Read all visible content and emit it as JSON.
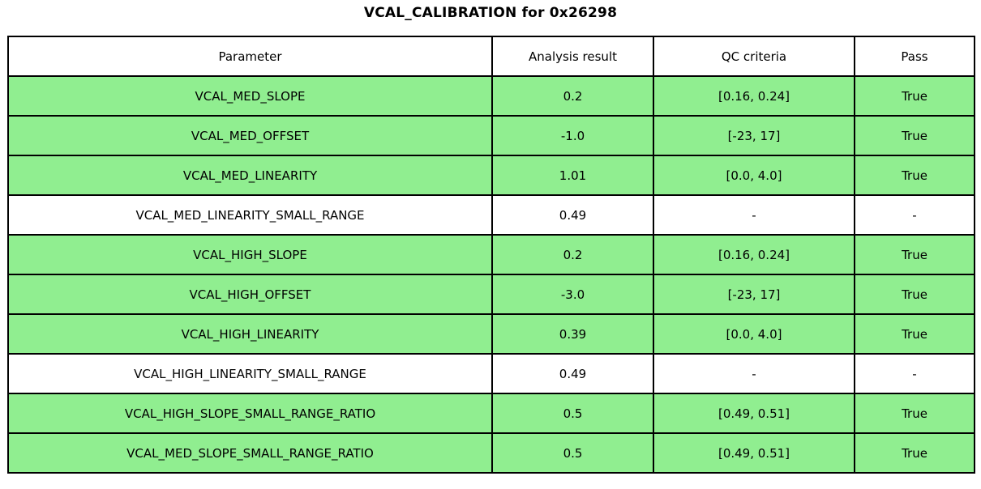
{
  "title": "VCAL_CALIBRATION for 0x26298",
  "colors": {
    "pass_row": "#90EE90",
    "neutral_row": "#FFFFFF",
    "header_row": "#FFFFFF",
    "border": "#000000",
    "text": "#000000"
  },
  "chart_data": {
    "type": "table",
    "title": "VCAL_CALIBRATION for 0x26298",
    "columns": [
      "Parameter",
      "Analysis result",
      "QC criteria",
      "Pass"
    ],
    "rows": [
      [
        "VCAL_MED_SLOPE",
        "0.2",
        "[0.16, 0.24]",
        "True"
      ],
      [
        "VCAL_MED_OFFSET",
        "-1.0",
        "[-23, 17]",
        "True"
      ],
      [
        "VCAL_MED_LINEARITY",
        "1.01",
        "[0.0, 4.0]",
        "True"
      ],
      [
        "VCAL_MED_LINEARITY_SMALL_RANGE",
        "0.49",
        "-",
        "-"
      ],
      [
        "VCAL_HIGH_SLOPE",
        "0.2",
        "[0.16, 0.24]",
        "True"
      ],
      [
        "VCAL_HIGH_OFFSET",
        "-3.0",
        "[-23, 17]",
        "True"
      ],
      [
        "VCAL_HIGH_LINEARITY",
        "0.39",
        "[0.0, 4.0]",
        "True"
      ],
      [
        "VCAL_HIGH_LINEARITY_SMALL_RANGE",
        "0.49",
        "-",
        "-"
      ],
      [
        "VCAL_HIGH_SLOPE_SMALL_RANGE_RATIO",
        "0.5",
        "[0.49, 0.51]",
        "True"
      ],
      [
        "VCAL_MED_SLOPE_SMALL_RANGE_RATIO",
        "0.5",
        "[0.49, 0.51]",
        "True"
      ]
    ],
    "row_highlight": [
      true,
      true,
      true,
      false,
      true,
      true,
      true,
      false,
      true,
      true
    ],
    "legend_position": "none",
    "grid": true
  }
}
